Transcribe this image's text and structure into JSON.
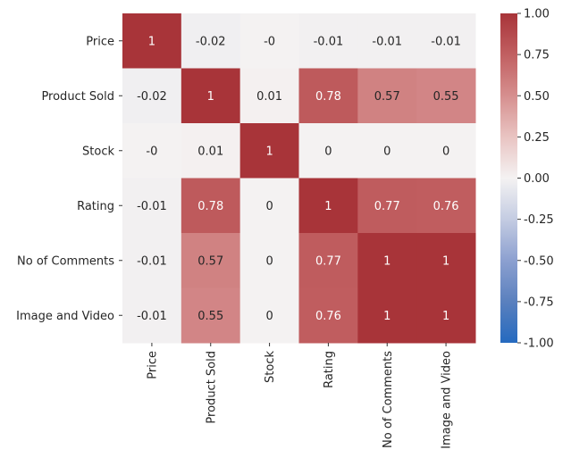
{
  "chart_data": {
    "type": "heatmap",
    "title": "",
    "xlabel": "",
    "ylabel": "",
    "rows": [
      "Price",
      "Product Sold",
      "Stock",
      "Rating",
      "No of Comments",
      "Image and Video"
    ],
    "columns": [
      "Price",
      "Product Sold",
      "Stock",
      "Rating",
      "No of Comments",
      "Image and Video"
    ],
    "values": [
      [
        1,
        -0.02,
        0,
        -0.01,
        -0.01,
        -0.01
      ],
      [
        -0.02,
        1,
        0.01,
        0.78,
        0.57,
        0.55
      ],
      [
        0,
        0.01,
        1,
        0,
        0,
        0
      ],
      [
        -0.01,
        0.78,
        0,
        1,
        0.77,
        0.76
      ],
      [
        -0.01,
        0.57,
        0,
        0.77,
        1,
        1
      ],
      [
        -0.01,
        0.55,
        0,
        0.76,
        1,
        1
      ]
    ],
    "cell_labels": [
      [
        "1",
        "-0.02",
        "-0",
        "-0.01",
        "-0.01",
        "-0.01"
      ],
      [
        "-0.02",
        "1",
        "0.01",
        "0.78",
        "0.57",
        "0.55"
      ],
      [
        "-0",
        "0.01",
        "1",
        "0",
        "0",
        "0"
      ],
      [
        "-0.01",
        "0.78",
        "0",
        "1",
        "0.77",
        "0.76"
      ],
      [
        "-0.01",
        "0.57",
        "0",
        "0.77",
        "1",
        "1"
      ],
      [
        "-0.01",
        "0.55",
        "0",
        "0.76",
        "1",
        "1"
      ]
    ],
    "colormap": "vlag",
    "vmin": -1,
    "vmax": 1,
    "colorbar_ticks": [
      "1.00",
      "0.75",
      "0.50",
      "0.25",
      "0.00",
      "-0.25",
      "-0.50",
      "-0.75",
      "-1.00"
    ],
    "legend": "right"
  }
}
